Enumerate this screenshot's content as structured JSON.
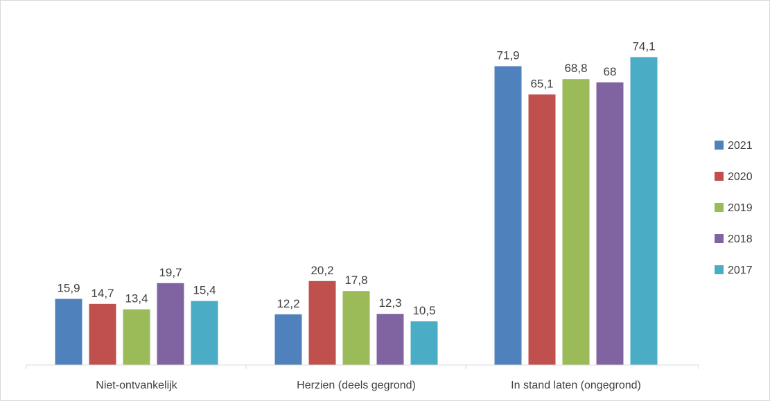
{
  "chart_data": {
    "type": "bar",
    "title": "",
    "xlabel": "",
    "ylabel": "",
    "categories": [
      "Niet-ontvankelijk",
      "Herzien (deels gegrond)",
      "In stand laten (ongegrond)"
    ],
    "series": [
      {
        "name": "2021",
        "color": "#4F81BD",
        "values": [
          15.9,
          12.2,
          71.9
        ],
        "labels": [
          "15,9",
          "12,2",
          "71,9"
        ]
      },
      {
        "name": "2020",
        "color": "#C0504D",
        "values": [
          14.7,
          20.2,
          65.1
        ],
        "labels": [
          "14,7",
          "20,2",
          "65,1"
        ]
      },
      {
        "name": "2019",
        "color": "#9BBB59",
        "values": [
          13.4,
          17.8,
          68.8
        ],
        "labels": [
          "13,4",
          "17,8",
          "68,8"
        ]
      },
      {
        "name": "2018",
        "color": "#8064A2",
        "values": [
          19.7,
          12.3,
          68
        ],
        "labels": [
          "19,7",
          "12,3",
          "68"
        ]
      },
      {
        "name": "2017",
        "color": "#4BACC6",
        "values": [
          15.4,
          10.5,
          74.1
        ],
        "labels": [
          "15,4",
          "10,5",
          "74,1"
        ]
      }
    ],
    "ylim": [
      0,
      80
    ],
    "grid": false,
    "legend": "right"
  }
}
